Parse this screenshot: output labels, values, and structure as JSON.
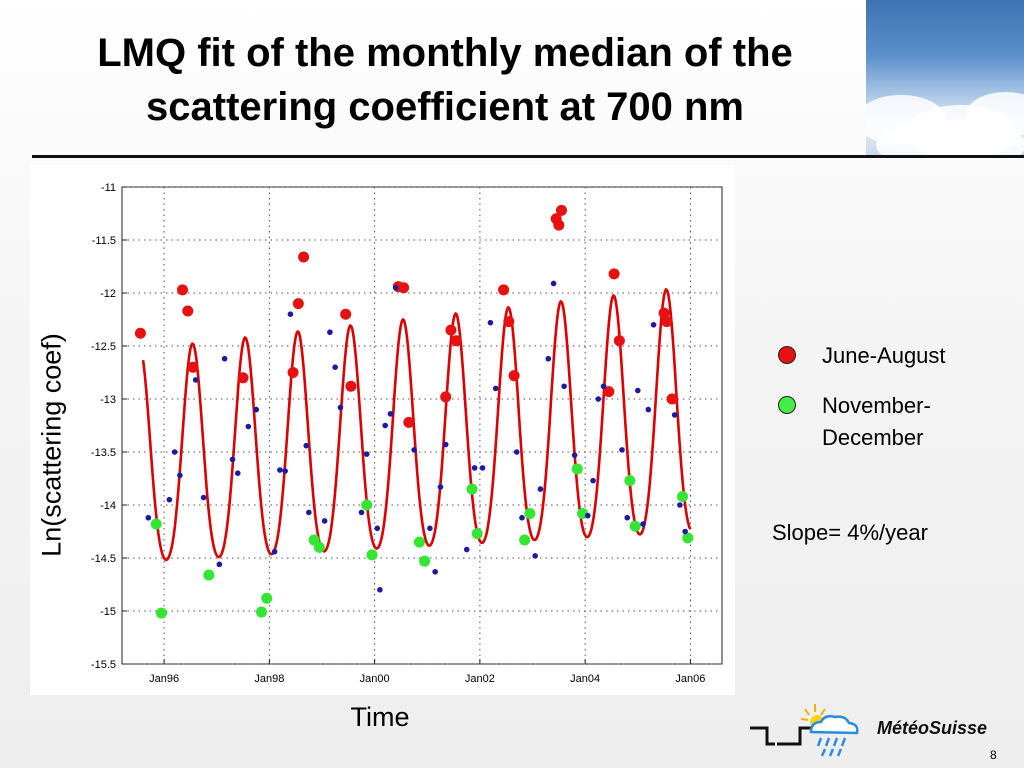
{
  "title": {
    "line1": "LMQ fit of the monthly median of the",
    "line2": "scattering coefficient at 700 nm"
  },
  "legend": {
    "summer_label": "June-August",
    "winter_label_line1": "November-",
    "winter_label_line2": "December"
  },
  "annotation": {
    "slope": "Slope= 4%/year"
  },
  "logo": {
    "text": "MétéoSuisse",
    "icon": "sun-cloud-rain-icon"
  },
  "page_number": "8",
  "colors": {
    "fit": "#e00000",
    "summer": "#e81010",
    "winter": "#33e633",
    "other": "#1a1aa6",
    "grid": "#555555"
  },
  "chart_data": {
    "type": "scatter",
    "title": "",
    "xlabel": "Time",
    "ylabel": "Ln(scattering coef)",
    "xlim": [
      1995.2,
      2006.6
    ],
    "ylim": [
      -15.5,
      -11
    ],
    "x_ticks": [
      1996,
      1998,
      2000,
      2002,
      2004,
      2006
    ],
    "x_tick_labels": [
      "Jan96",
      "Jan98",
      "Jan00",
      "Jan02",
      "Jan04",
      "Jan06"
    ],
    "y_ticks": [
      -11,
      -11.5,
      -12,
      -12.5,
      -13,
      -13.5,
      -14,
      -14.5,
      -15,
      -15.5
    ],
    "y_tick_labels": [
      "-11",
      "-11.5",
      "-12",
      "-12.5",
      "-13",
      "-13.5",
      "-14",
      "-14.5",
      "-15",
      "-15.5"
    ],
    "grid": true,
    "fit": {
      "name": "LMQ fit",
      "start": 1995.6,
      "end": 2006.0,
      "mean_at_start": -13.65,
      "trend_per_year": 0.04,
      "amplitude_base": 1.0,
      "amplitude_growth": 0.015,
      "peak_phase_year_fraction": 0.54,
      "harmonic_ratio": 0.12,
      "note": "LMQ fit curve"
    },
    "series": [
      {
        "name": "June-August",
        "marker": "circle",
        "points": [
          [
            1995.55,
            -12.38
          ],
          [
            1996.35,
            -11.97
          ],
          [
            1996.45,
            -12.17
          ],
          [
            1996.55,
            -12.7
          ],
          [
            1997.5,
            -12.8
          ],
          [
            1998.45,
            -12.75
          ],
          [
            1998.55,
            -12.1
          ],
          [
            1998.65,
            -11.66
          ],
          [
            1999.45,
            -12.2
          ],
          [
            1999.55,
            -12.88
          ],
          [
            2000.45,
            -11.94
          ],
          [
            2000.55,
            -11.95
          ],
          [
            2000.65,
            -13.22
          ],
          [
            2001.45,
            -12.35
          ],
          [
            2001.55,
            -12.45
          ],
          [
            2001.35,
            -12.98
          ],
          [
            2002.45,
            -11.97
          ],
          [
            2002.55,
            -12.27
          ],
          [
            2002.65,
            -12.78
          ],
          [
            2003.45,
            -11.3
          ],
          [
            2003.55,
            -11.22
          ],
          [
            2003.5,
            -11.36
          ],
          [
            2004.55,
            -11.82
          ],
          [
            2004.45,
            -12.93
          ],
          [
            2004.65,
            -12.45
          ],
          [
            2005.5,
            -12.19
          ],
          [
            2005.55,
            -12.27
          ],
          [
            2005.65,
            -13.0
          ]
        ]
      },
      {
        "name": "November-December",
        "marker": "circle",
        "points": [
          [
            1995.85,
            -14.18
          ],
          [
            1995.95,
            -15.02
          ],
          [
            1996.85,
            -14.66
          ],
          [
            1997.85,
            -15.01
          ],
          [
            1997.95,
            -14.88
          ],
          [
            1998.85,
            -14.33
          ],
          [
            1998.95,
            -14.4
          ],
          [
            1999.85,
            -14.0
          ],
          [
            1999.95,
            -14.47
          ],
          [
            2000.85,
            -14.35
          ],
          [
            2000.95,
            -14.53
          ],
          [
            2001.85,
            -13.85
          ],
          [
            2001.95,
            -14.27
          ],
          [
            2002.85,
            -14.33
          ],
          [
            2002.95,
            -14.08
          ],
          [
            2003.85,
            -13.66
          ],
          [
            2003.95,
            -14.08
          ],
          [
            2004.85,
            -13.77
          ],
          [
            2004.95,
            -14.2
          ],
          [
            2005.85,
            -13.92
          ],
          [
            2005.95,
            -14.31
          ]
        ]
      },
      {
        "name": "",
        "marker": "star",
        "points": [
          [
            1995.7,
            -14.12
          ],
          [
            1996.1,
            -13.95
          ],
          [
            1996.2,
            -13.5
          ],
          [
            1996.3,
            -13.72
          ],
          [
            1996.6,
            -12.82
          ],
          [
            1996.75,
            -13.93
          ],
          [
            1997.05,
            -14.56
          ],
          [
            1997.15,
            -12.62
          ],
          [
            1997.3,
            -13.57
          ],
          [
            1997.4,
            -13.7
          ],
          [
            1997.6,
            -13.26
          ],
          [
            1997.75,
            -13.1
          ],
          [
            1998.1,
            -14.44
          ],
          [
            1998.2,
            -13.67
          ],
          [
            1998.3,
            -13.68
          ],
          [
            1998.4,
            -12.2
          ],
          [
            1998.7,
            -13.44
          ],
          [
            1998.75,
            -14.07
          ],
          [
            1999.05,
            -14.15
          ],
          [
            1999.15,
            -12.37
          ],
          [
            1999.25,
            -12.7
          ],
          [
            1999.35,
            -13.08
          ],
          [
            1999.75,
            -14.07
          ],
          [
            1999.85,
            -13.52
          ],
          [
            2000.05,
            -14.22
          ],
          [
            2000.1,
            -14.8
          ],
          [
            2000.2,
            -13.25
          ],
          [
            2000.3,
            -13.14
          ],
          [
            2000.4,
            -11.95
          ],
          [
            2000.75,
            -13.48
          ],
          [
            2001.05,
            -14.22
          ],
          [
            2001.15,
            -14.63
          ],
          [
            2001.25,
            -13.83
          ],
          [
            2001.35,
            -13.43
          ],
          [
            2001.75,
            -14.42
          ],
          [
            2001.9,
            -13.65
          ],
          [
            2002.05,
            -13.65
          ],
          [
            2002.2,
            -12.28
          ],
          [
            2002.3,
            -12.9
          ],
          [
            2002.7,
            -13.5
          ],
          [
            2002.8,
            -14.12
          ],
          [
            2003.05,
            -14.48
          ],
          [
            2003.15,
            -13.85
          ],
          [
            2003.3,
            -12.62
          ],
          [
            2003.4,
            -11.91
          ],
          [
            2003.6,
            -12.88
          ],
          [
            2003.8,
            -13.53
          ],
          [
            2004.05,
            -14.1
          ],
          [
            2004.15,
            -13.77
          ],
          [
            2004.25,
            -13.0
          ],
          [
            2004.35,
            -12.88
          ],
          [
            2004.7,
            -13.48
          ],
          [
            2004.8,
            -14.12
          ],
          [
            2005.0,
            -12.92
          ],
          [
            2005.1,
            -14.18
          ],
          [
            2005.2,
            -13.1
          ],
          [
            2005.3,
            -12.3
          ],
          [
            2005.7,
            -13.15
          ],
          [
            2005.8,
            -14.0
          ],
          [
            2005.9,
            -14.25
          ]
        ]
      }
    ]
  }
}
